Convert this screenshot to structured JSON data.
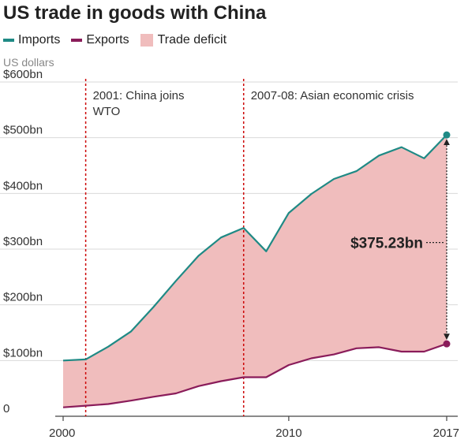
{
  "title": "US trade in goods with China",
  "legend": [
    {
      "label": "Imports",
      "color": "#1f8a85",
      "shape": "line"
    },
    {
      "label": "Exports",
      "color": "#8a1c5a",
      "shape": "line"
    },
    {
      "label": "Trade deficit",
      "color": "#f0bdbd",
      "shape": "box"
    }
  ],
  "units": "US dollars",
  "chart_data": {
    "type": "area",
    "title": "US trade in goods with China",
    "ylabel": "US dollars",
    "xlim": [
      2000,
      2017
    ],
    "ylim": [
      0,
      600
    ],
    "x_ticks": [
      {
        "value": 2000,
        "label": "2000"
      },
      {
        "value": 2010,
        "label": "2010"
      },
      {
        "value": 2017,
        "label": "2017"
      }
    ],
    "y_ticks": [
      {
        "value": 0,
        "label": "0"
      },
      {
        "value": 100,
        "label": "$100bn"
      },
      {
        "value": 200,
        "label": "$200bn"
      },
      {
        "value": 300,
        "label": "$300bn"
      },
      {
        "value": 400,
        "label": "$400bn"
      },
      {
        "value": 500,
        "label": "$500bn"
      },
      {
        "value": 600,
        "label": "$600bn"
      }
    ],
    "x": [
      2000,
      2001,
      2002,
      2003,
      2004,
      2005,
      2006,
      2007,
      2008,
      2009,
      2010,
      2011,
      2012,
      2013,
      2014,
      2015,
      2016,
      2017
    ],
    "series": [
      {
        "name": "Imports",
        "color": "#1f8a85",
        "values": [
          100,
          102,
          125,
          152,
          196,
          243,
          288,
          321,
          338,
          296,
          365,
          399,
          426,
          440,
          468,
          483,
          463,
          505
        ]
      },
      {
        "name": "Exports",
        "color": "#8a1c5a",
        "values": [
          16,
          19,
          22,
          28,
          35,
          41,
          54,
          63,
          70,
          70,
          92,
          104,
          111,
          122,
          124,
          116,
          116,
          130
        ]
      }
    ],
    "area": {
      "name": "Trade deficit",
      "color": "#f0bdbd"
    },
    "annotations": [
      {
        "x": 2001,
        "text_lines": [
          "2001: China joins",
          "WTO"
        ]
      },
      {
        "x": 2008,
        "text_lines": [
          "2007-08: Asian economic crisis"
        ]
      }
    ],
    "callout": {
      "x": 2017,
      "text": "$375.23bn"
    },
    "grid": "horizontal",
    "legend_position": "top-left"
  }
}
